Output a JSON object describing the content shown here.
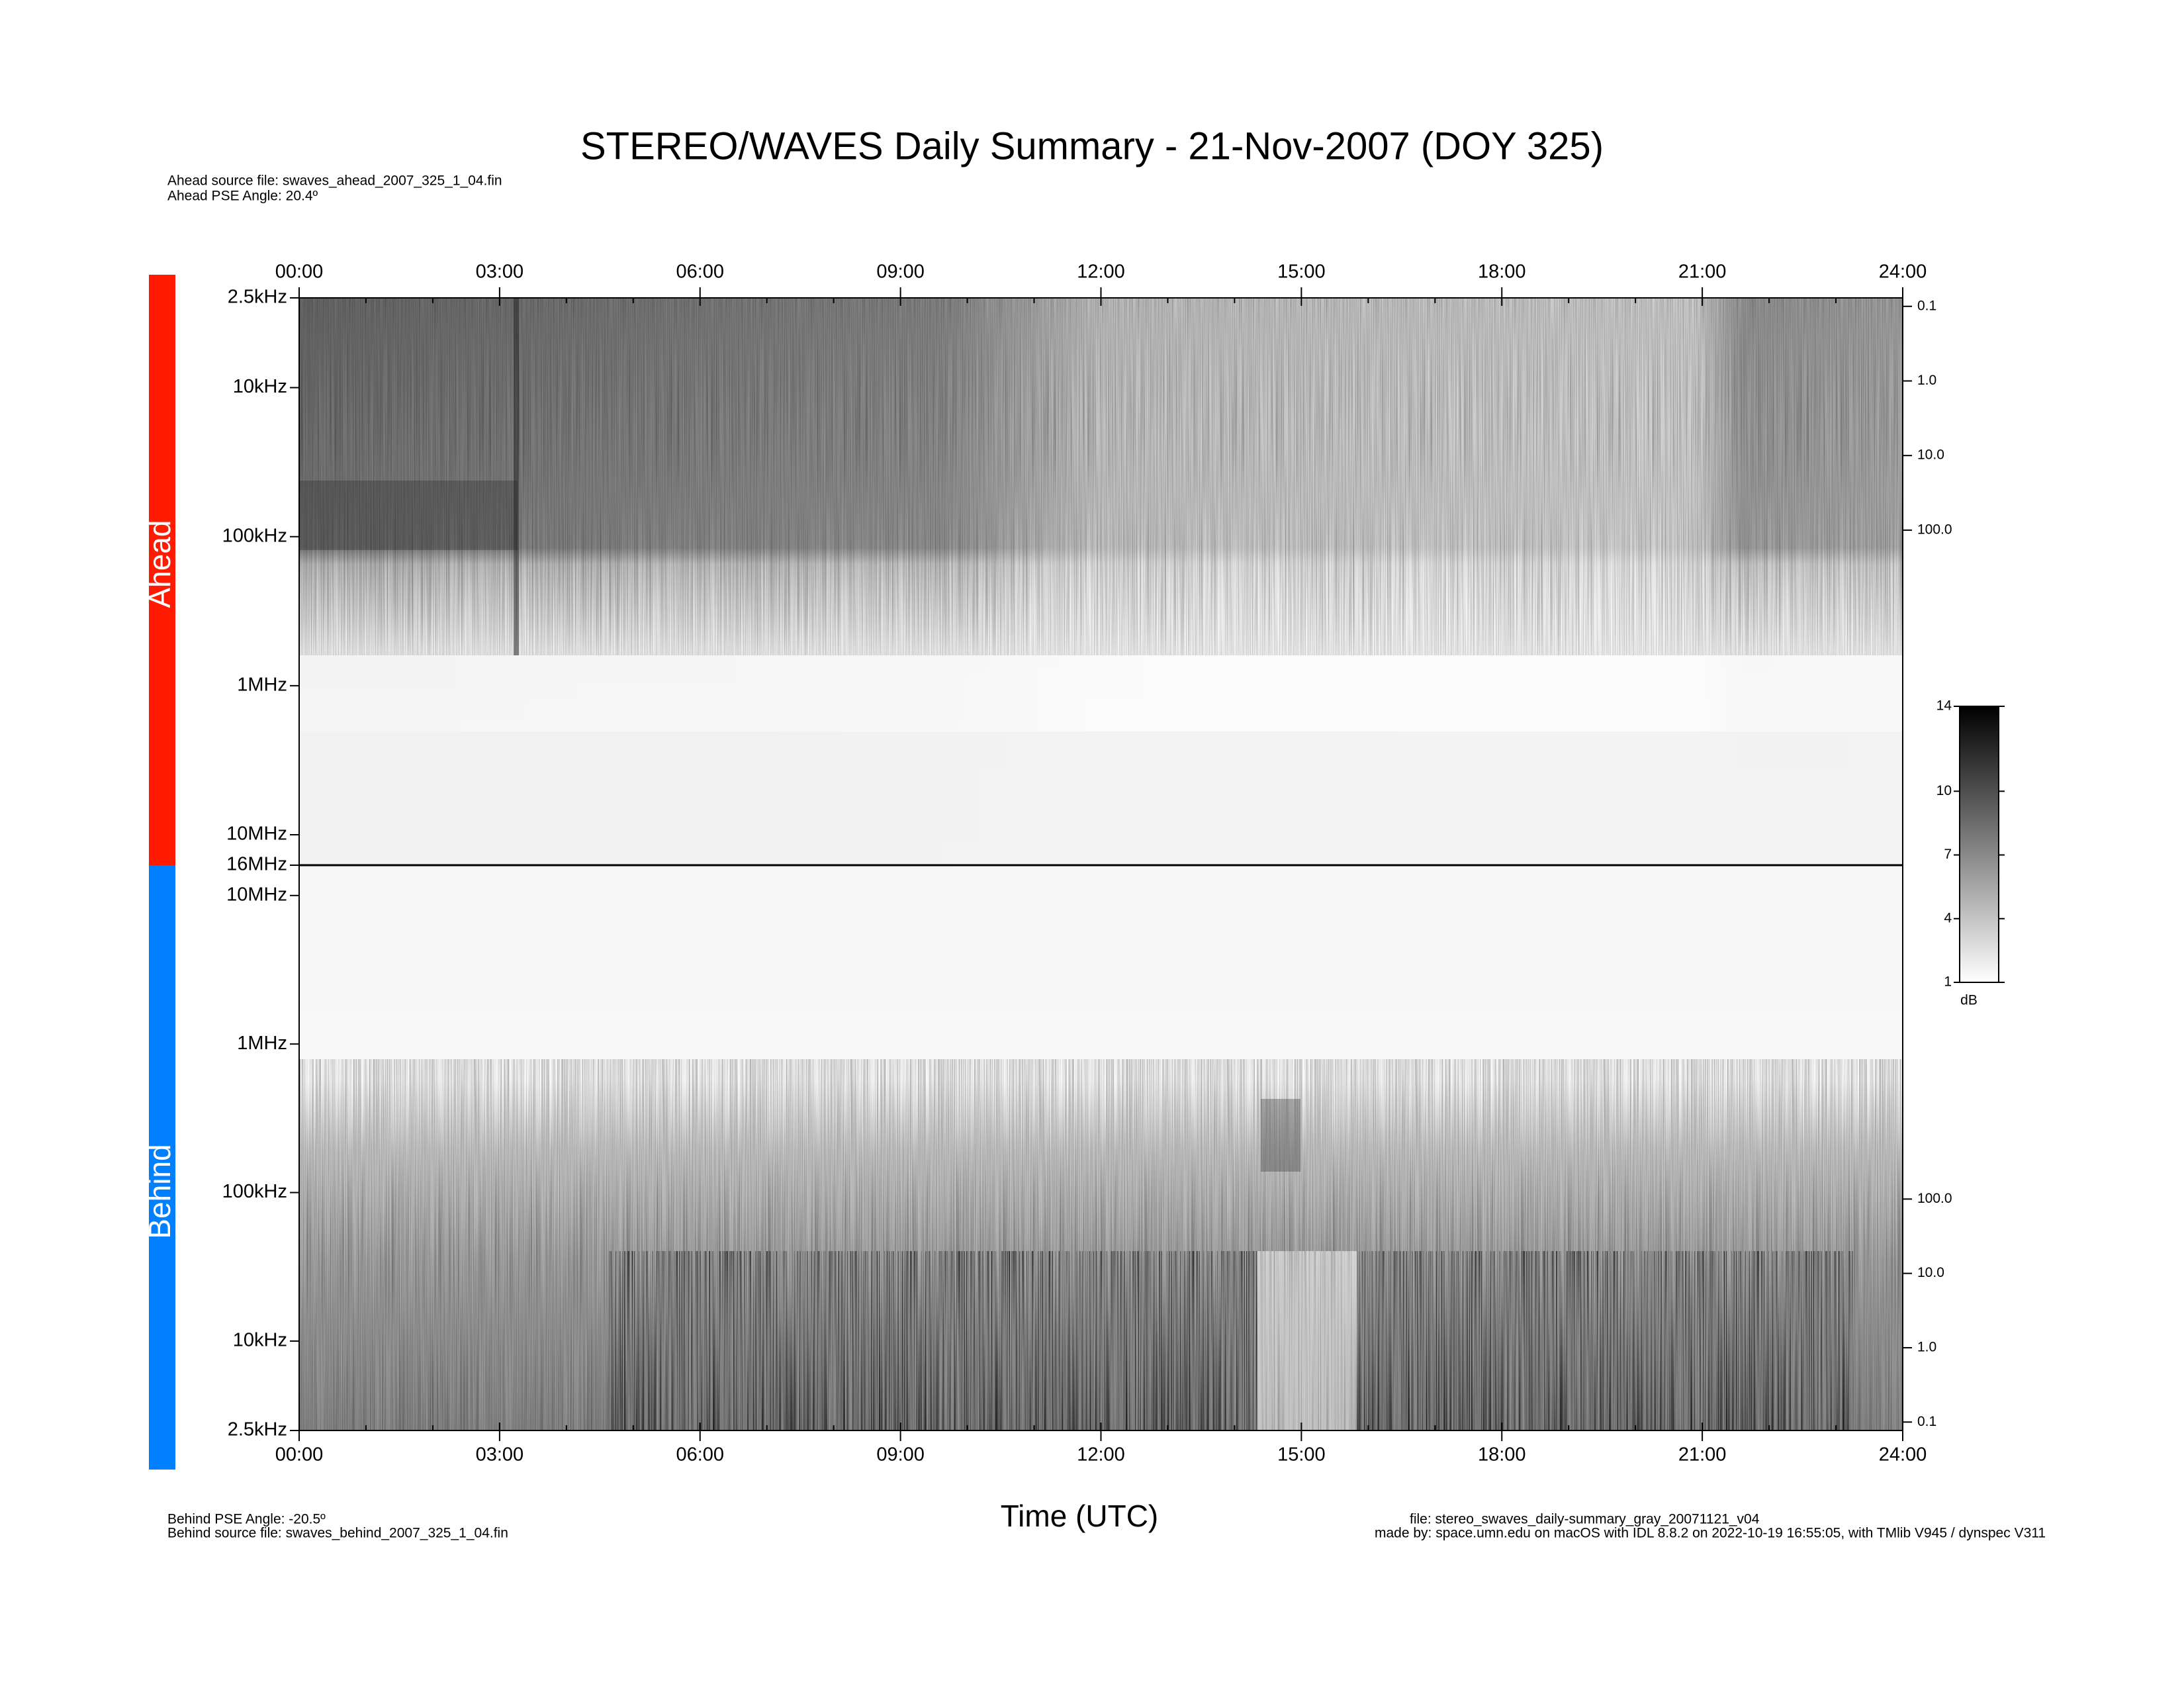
{
  "chart_data": [
    {
      "type": "spectrogram",
      "title": "STEREO/WAVES Daily Summary - 21-Nov-2007 (DOY 325)",
      "panel_label": "Ahead",
      "panel_color": "#ff1a00",
      "annotations": [
        "Ahead source file: swaves_ahead_2007_325_1_04.fin",
        "Ahead PSE Angle:   20.4º"
      ],
      "xlim": [
        0,
        24
      ],
      "xticks": [
        {
          "value": 0,
          "label": "00:00"
        },
        {
          "value": 3,
          "label": "03:00"
        },
        {
          "value": 6,
          "label": "06:00"
        },
        {
          "value": 9,
          "label": "09:00"
        },
        {
          "value": 12,
          "label": "12:00"
        },
        {
          "value": 15,
          "label": "15:00"
        },
        {
          "value": 18,
          "label": "18:00"
        },
        {
          "value": 21,
          "label": "21:00"
        },
        {
          "value": 24,
          "label": "24:00"
        }
      ],
      "xminorticks": [
        1,
        2,
        4,
        5,
        7,
        8,
        10,
        11,
        13,
        14,
        16,
        17,
        19,
        20,
        22,
        23
      ],
      "ylim": [
        16000000,
        2500
      ],
      "ylog": true,
      "yticks": [
        {
          "value": 2500,
          "label": "2.5kHz"
        },
        {
          "value": 10000,
          "label": "10kHz"
        },
        {
          "value": 100000,
          "label": "100kHz"
        },
        {
          "value": 1000000,
          "label": "1MHz"
        },
        {
          "value": 10000000,
          "label": "10MHz"
        },
        {
          "value": 16000000,
          "label": "16MHz"
        }
      ],
      "y2lim": [
        3100000,
        0.077
      ],
      "y2ticks": [
        0.1,
        {
          "value": 1,
          "label": "1.0"
        },
        {
          "value": 10,
          "label": "10.0"
        },
        {
          "value": 100,
          "label": "100.0"
        }
      ]
    },
    {
      "type": "spectrogram",
      "panel_label": "Behind",
      "panel_color": "#0080ff",
      "annotations": [
        "Behind PSE Angle:  -20.5º",
        "Behind source file: swaves_behind_2007_325_1_04.fin",
        "file: stereo_swaves_daily-summary_gray_20071121_v04",
        "made by: space.umn.edu on macOS with IDL 8.8.2 on 2022-10-19 16:55:05, with TMlib V945 / dynspec V311"
      ],
      "xlabel": "Time (UTC)",
      "xlim": [
        0,
        24
      ],
      "xticks": [
        {
          "value": 0,
          "label": "00:00"
        },
        {
          "value": 3,
          "label": "03:00"
        },
        {
          "value": 6,
          "label": "06:00"
        },
        {
          "value": 9,
          "label": "09:00"
        },
        {
          "value": 12,
          "label": "12:00"
        },
        {
          "value": 15,
          "label": "15:00"
        },
        {
          "value": 18,
          "label": "18:00"
        },
        {
          "value": 21,
          "label": "21:00"
        },
        {
          "value": 24,
          "label": "24:00"
        }
      ],
      "xminorticks": [
        1,
        2,
        4,
        5,
        7,
        8,
        10,
        11,
        13,
        14,
        16,
        17,
        19,
        20,
        22,
        23
      ],
      "ylim": [
        2500,
        16000000
      ],
      "ylog": true,
      "yticks": [
        {
          "value": 2500,
          "label": "2.5kHz"
        },
        {
          "value": 10000,
          "label": "10kHz"
        },
        {
          "value": 100000,
          "label": "100kHz"
        },
        {
          "value": 1000000,
          "label": "1MHz"
        },
        {
          "value": 10000000,
          "label": "10MHz"
        }
      ],
      "y2lim": [
        0.077,
        3100000
      ],
      "y2ticks": [
        0.1,
        {
          "value": 1,
          "label": "1.0"
        },
        {
          "value": 10,
          "label": "10.0"
        },
        {
          "value": 100,
          "label": "100.0"
        }
      ]
    }
  ],
  "colorbar": {
    "label": "dB",
    "lim": [
      1,
      14
    ],
    "ticks": [
      1,
      4,
      7,
      10,
      14
    ]
  }
}
